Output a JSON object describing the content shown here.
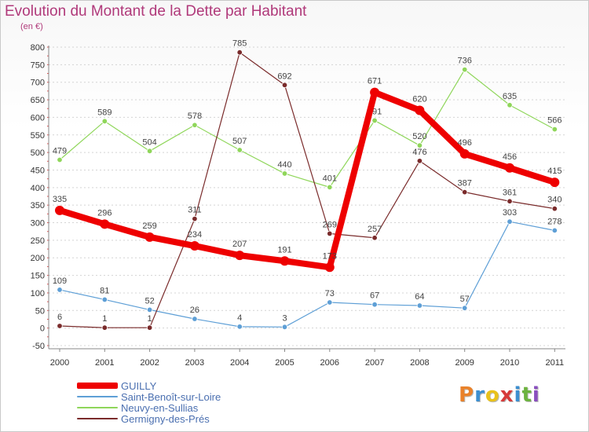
{
  "header": {
    "title": "Evolution du Montant de la Dette par Habitant",
    "subtitle": "(en €)"
  },
  "logo": {
    "letters": [
      "P",
      "r",
      "o",
      "x",
      "i",
      "t",
      "i"
    ],
    "colors": [
      "#e9822b",
      "#3c8fd0",
      "#e9c21b",
      "#d63a3a",
      "#3c8fd0",
      "#6cb33e",
      "#8a4fbf"
    ]
  },
  "chart_data": {
    "type": "line",
    "x": [
      "2000",
      "2001",
      "2002",
      "2003",
      "2004",
      "2005",
      "2006",
      "2007",
      "2008",
      "2009",
      "2010",
      "2011"
    ],
    "ylim": [
      -50,
      800
    ],
    "yticks": [
      -50,
      0,
      50,
      100,
      150,
      200,
      250,
      300,
      350,
      400,
      450,
      500,
      550,
      600,
      650,
      700,
      750,
      800
    ],
    "grid": "horizontal dashed",
    "legend": "bottom-left",
    "series": [
      {
        "name": "Saint-Benoît-sur-Loire",
        "color": "#5e9fd6",
        "width": 1.2,
        "values": [
          109,
          81,
          52,
          26,
          4,
          3,
          73,
          67,
          64,
          57,
          303,
          278
        ]
      },
      {
        "name": "Neuvy-en-Sullias",
        "color": "#8fd65a",
        "width": 1.2,
        "values": [
          479,
          589,
          504,
          578,
          507,
          440,
          401,
          591,
          520,
          736,
          635,
          566
        ]
      },
      {
        "name": "Germigny-des-Prés",
        "color": "#7a2b2b",
        "width": 1.2,
        "values": [
          6,
          1,
          1,
          311,
          785,
          692,
          269,
          257,
          476,
          387,
          361,
          340
        ]
      },
      {
        "name": "GUILLY",
        "color": "#ee0000",
        "width": 8,
        "values": [
          335,
          296,
          259,
          234,
          207,
          191,
          173,
          671,
          620,
          496,
          456,
          415
        ]
      }
    ],
    "legend_order": [
      "GUILLY",
      "Saint-Benoît-sur-Loire",
      "Neuvy-en-Sullias",
      "Germigny-des-Prés"
    ]
  }
}
